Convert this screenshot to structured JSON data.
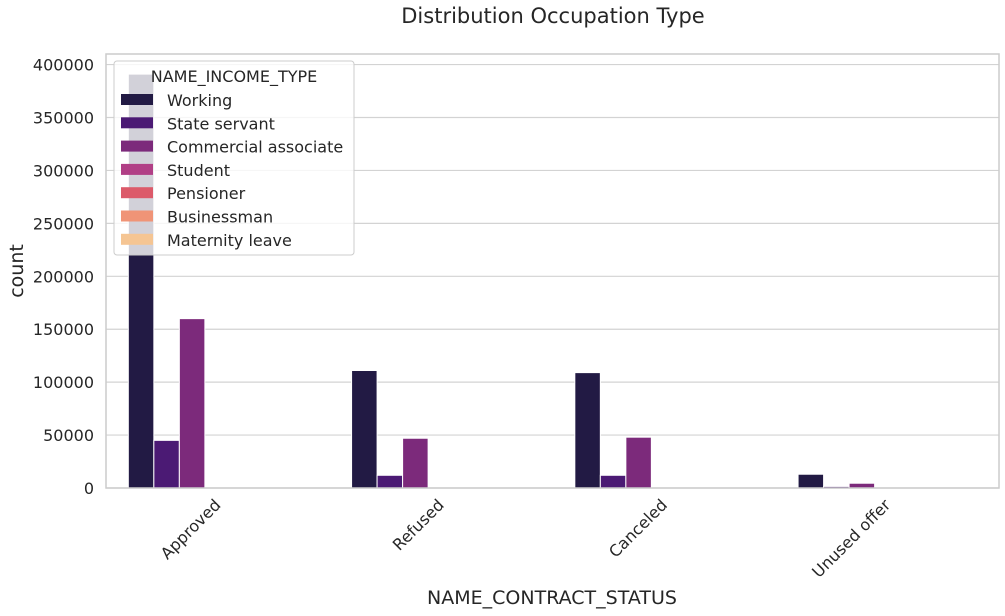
{
  "chart_data": {
    "type": "bar",
    "title": "Distribution Occupation Type",
    "xlabel": "NAME_CONTRACT_STATUS",
    "ylabel": "count",
    "categories": [
      "Approved",
      "Refused",
      "Canceled",
      "Unused offer"
    ],
    "ylim": [
      0,
      410000
    ],
    "yticks": [
      0,
      50000,
      100000,
      150000,
      200000,
      250000,
      300000,
      350000,
      400000
    ],
    "grid": true,
    "legend": {
      "title": "NAME_INCOME_TYPE",
      "position": "top-left"
    },
    "series": [
      {
        "name": "Working",
        "color": "#221a44",
        "values": [
          391000,
          111000,
          109000,
          13000
        ]
      },
      {
        "name": "State servant",
        "color": "#4b1a74",
        "values": [
          45000,
          12000,
          12000,
          1500
        ]
      },
      {
        "name": "Commercial associate",
        "color": "#7c2a7b",
        "values": [
          160000,
          47000,
          48000,
          4500
        ]
      },
      {
        "name": "Student",
        "color": "#b13f86",
        "values": [
          20,
          5,
          5,
          1
        ]
      },
      {
        "name": "Pensioner",
        "color": "#dc5a6a",
        "values": [
          30,
          10,
          10,
          1
        ]
      },
      {
        "name": "Businessman",
        "color": "#f09477",
        "values": [
          40,
          10,
          10,
          1
        ]
      },
      {
        "name": "Maternity leave",
        "color": "#f5c593",
        "values": [
          20,
          5,
          5,
          1
        ]
      }
    ]
  }
}
